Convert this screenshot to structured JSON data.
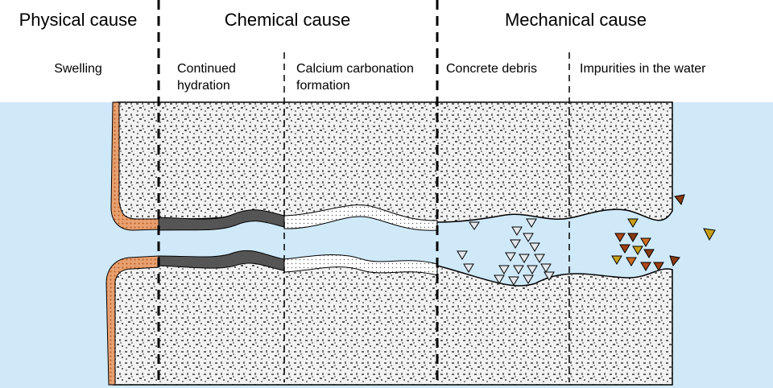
{
  "sections": [
    {
      "title": "Physical cause"
    },
    {
      "title": "Chemical cause"
    },
    {
      "title": "Mechanical cause"
    }
  ],
  "subsections": [
    {
      "lines": [
        "Swelling"
      ]
    },
    {
      "lines": [
        "Continued",
        "hydration"
      ]
    },
    {
      "lines": [
        "Calcium carbonation",
        "formation"
      ]
    },
    {
      "lines": [
        "Concrete debris"
      ]
    },
    {
      "lines": [
        "Impurities in the water"
      ]
    }
  ]
}
